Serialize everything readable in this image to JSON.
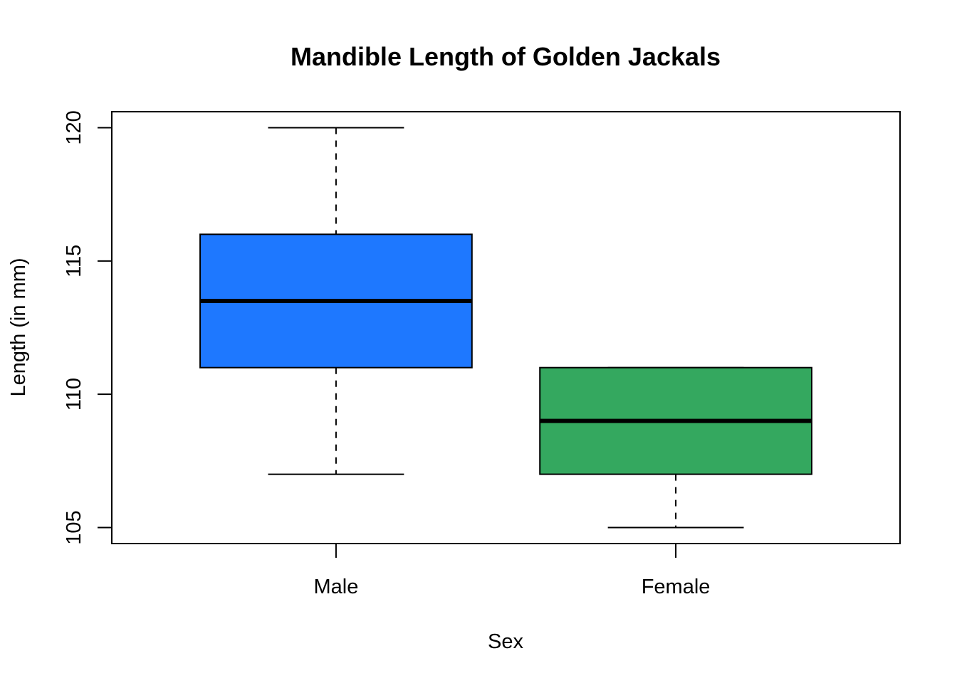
{
  "chart_data": {
    "type": "boxplot",
    "title": "Mandible Length of Golden Jackals",
    "xlabel": "Sex",
    "ylabel": "Length (in mm)",
    "categories": [
      "Male",
      "Female"
    ],
    "ylim": [
      104.4,
      120.6
    ],
    "yticks": [
      105,
      110,
      115,
      120
    ],
    "ytick_labels": [
      "105",
      "110",
      "115",
      "120"
    ],
    "grid": false,
    "series": [
      {
        "category": "Male",
        "min": 107,
        "q1": 111,
        "median": 113.5,
        "q3": 116,
        "max": 120,
        "color": "#1E78FF"
      },
      {
        "category": "Female",
        "min": 105,
        "q1": 107,
        "median": 109,
        "q3": 111,
        "max": 111,
        "color": "#34A85F"
      }
    ]
  }
}
